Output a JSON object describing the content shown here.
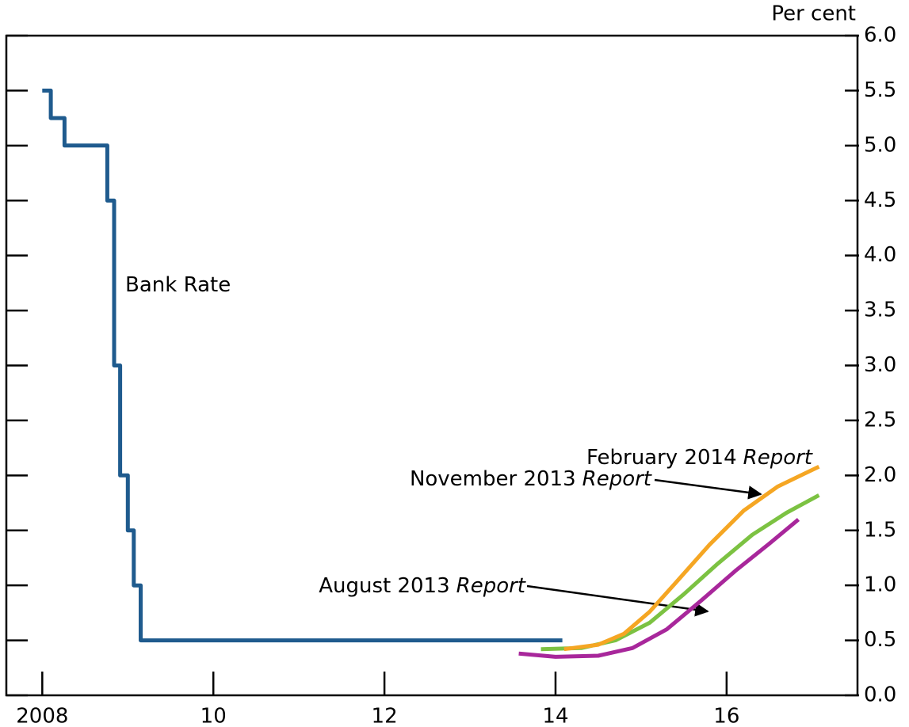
{
  "chart_data": {
    "type": "line",
    "y_axis_label": "Per cent",
    "xlim": [
      2007.58,
      2017.53
    ],
    "xticks": [
      2008,
      {
        "value": 2010,
        "label": "10"
      },
      {
        "value": 2012,
        "label": "12"
      },
      {
        "value": 2014,
        "label": "14"
      },
      {
        "value": 2016,
        "label": "16"
      }
    ],
    "ylim": [
      0,
      6
    ],
    "yticks": [
      {
        "value": 0,
        "label": "0.0"
      },
      0.5,
      {
        "value": 1,
        "label": "1.0"
      },
      1.5,
      {
        "value": 2,
        "label": "2.0"
      },
      2.5,
      {
        "value": 3,
        "label": "3.0"
      },
      3.5,
      {
        "value": 4,
        "label": "4.0"
      },
      4.5,
      {
        "value": 5,
        "label": "5.0"
      },
      5.5,
      {
        "value": 6,
        "label": "6.0"
      }
    ],
    "series": [
      {
        "label": "Bank Rate",
        "color": "#1f5b8e",
        "x": [
          2008.0,
          2008.1,
          2008.1,
          2008.26,
          2008.26,
          2008.76,
          2008.76,
          2008.84,
          2008.84,
          2008.91,
          2008.91,
          2009.0,
          2009.0,
          2009.07,
          2009.07,
          2009.15,
          2009.15,
          2014.08
        ],
        "values": [
          5.5,
          5.5,
          5.25,
          5.25,
          5.0,
          5.0,
          4.5,
          4.5,
          3.0,
          3.0,
          2.0,
          2.0,
          1.5,
          1.5,
          1.0,
          1.0,
          0.5,
          0.5
        ]
      },
      {
        "label": "August 2013",
        "label_emphasis": "Report",
        "color": "#a8279b",
        "x": [
          2013.57,
          2014.0,
          2014.5,
          2014.9,
          2015.3,
          2015.7,
          2016.1,
          2016.5,
          2016.84
        ],
        "values": [
          0.38,
          0.35,
          0.36,
          0.43,
          0.6,
          0.86,
          1.13,
          1.38,
          1.6
        ]
      },
      {
        "label": "November 2013",
        "label_emphasis": "Report",
        "color": "#7cc242",
        "x": [
          2013.83,
          2014.3,
          2014.7,
          2015.1,
          2015.5,
          2015.9,
          2016.3,
          2016.7,
          2017.08
        ],
        "values": [
          0.42,
          0.43,
          0.5,
          0.66,
          0.92,
          1.2,
          1.46,
          1.66,
          1.82
        ]
      },
      {
        "label": "February 2014",
        "label_emphasis": "Report",
        "color": "#f5a623",
        "x": [
          2014.1,
          2014.5,
          2014.8,
          2015.1,
          2015.4,
          2015.8,
          2016.2,
          2016.6,
          2017.08
        ],
        "values": [
          0.42,
          0.46,
          0.56,
          0.76,
          1.02,
          1.37,
          1.68,
          1.9,
          2.08
        ]
      }
    ]
  }
}
